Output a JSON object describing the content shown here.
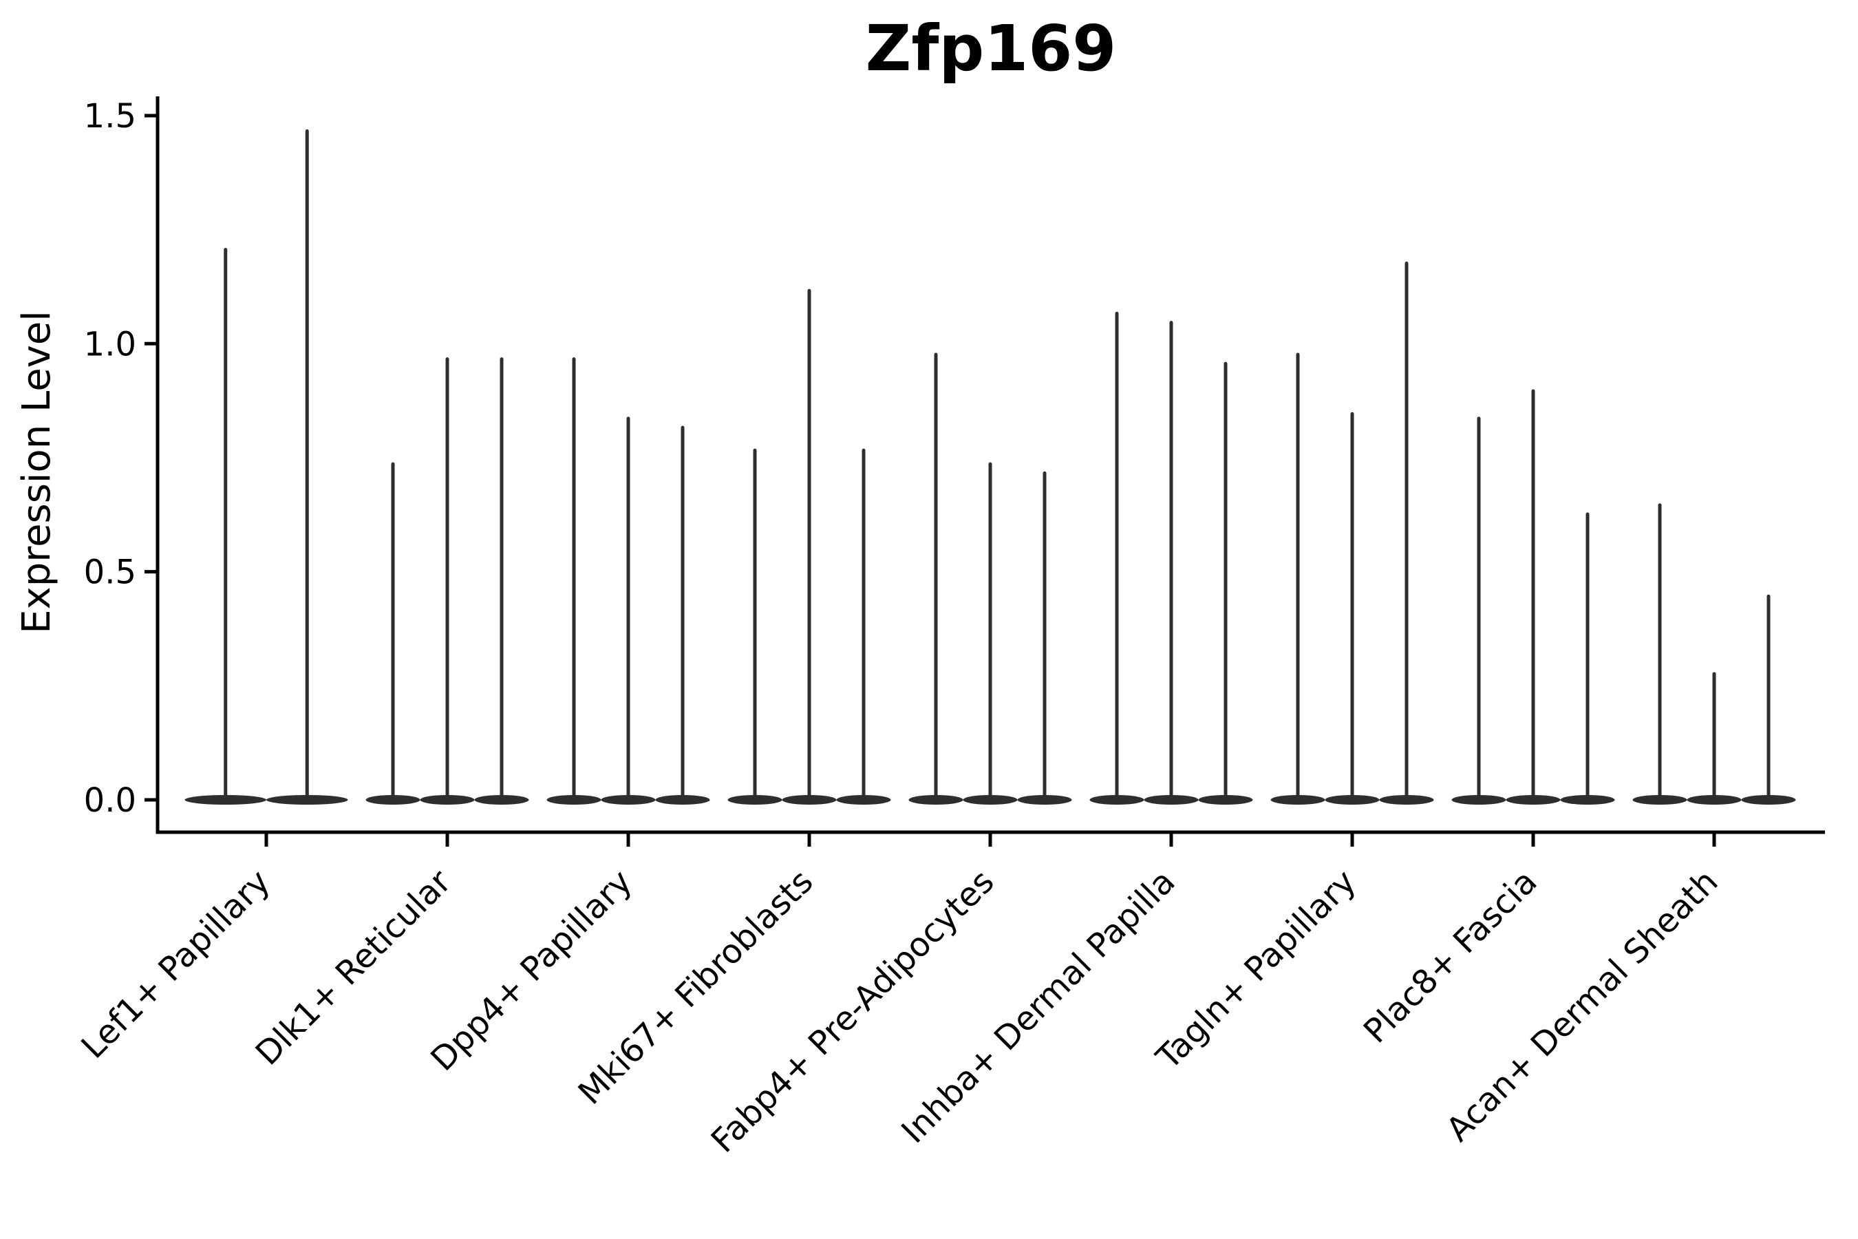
{
  "chart_data": {
    "type": "violin",
    "title": "Zfp169",
    "ylabel": "Expression Level",
    "xlabel": "",
    "ylim": [
      0,
      1.5
    ],
    "grid": false,
    "legend": "none",
    "yticks": [
      {
        "value": 0.0,
        "label": "0.0"
      },
      {
        "value": 0.5,
        "label": "0.5"
      },
      {
        "value": 1.0,
        "label": "1.0"
      },
      {
        "value": 1.5,
        "label": "1.5"
      }
    ],
    "violin_color": "#2e2e2e",
    "axis_color": "#000000",
    "background_color": "#ffffff",
    "groups": [
      {
        "label": "Lef1+ Papillary",
        "violin_max_values": [
          1.21,
          1.47
        ]
      },
      {
        "label": "Dlk1+ Reticular",
        "violin_max_values": [
          0.74,
          0.97,
          0.97
        ]
      },
      {
        "label": "Dpp4+ Papillary",
        "violin_max_values": [
          0.97,
          0.84,
          0.82
        ]
      },
      {
        "label": "Mki67+ Fibroblasts",
        "violin_max_values": [
          0.77,
          1.12,
          0.77
        ]
      },
      {
        "label": "Fabp4+ Pre-Adipocytes",
        "violin_max_values": [
          0.98,
          0.74,
          0.72
        ]
      },
      {
        "label": "Inhba+ Dermal Papilla",
        "violin_max_values": [
          1.07,
          1.05,
          0.96
        ]
      },
      {
        "label": "Tagln+ Papillary",
        "violin_max_values": [
          0.98,
          0.85,
          1.18
        ]
      },
      {
        "label": "Plac8+ Fascia",
        "violin_max_values": [
          0.84,
          0.9,
          0.63
        ]
      },
      {
        "label": "Acan+ Dermal Sheath",
        "violin_max_values": [
          0.65,
          0.28,
          0.45
        ]
      }
    ]
  }
}
